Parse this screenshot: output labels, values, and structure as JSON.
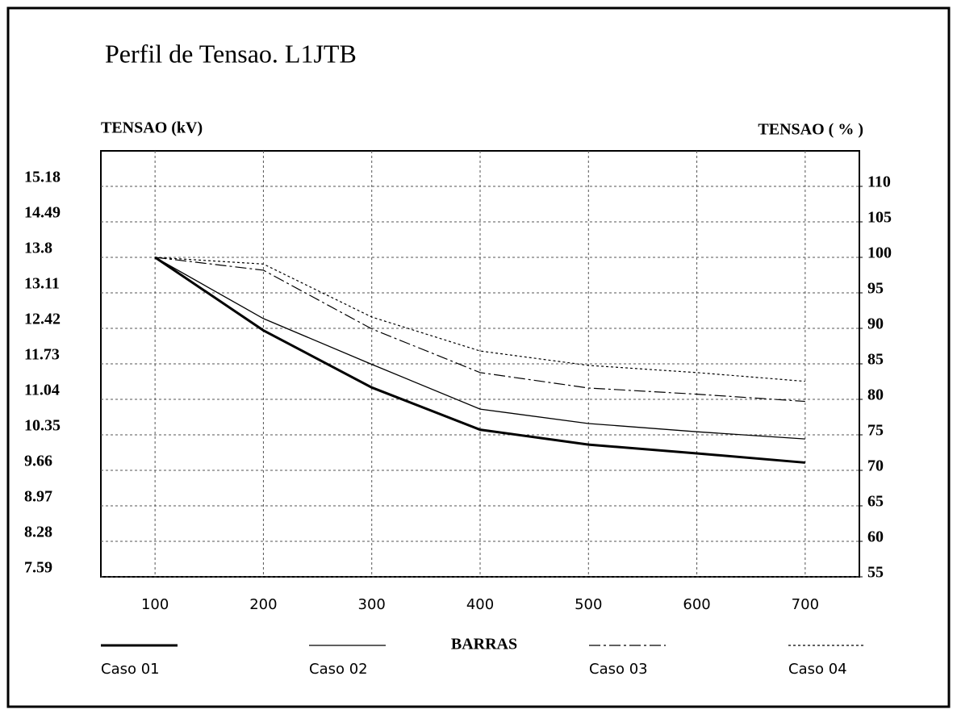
{
  "chart_data": {
    "type": "line",
    "title": "Perfil de Tensao. L1JTB",
    "ylabel": "TENSAO (kV)",
    "y2label": "TENSAO ( % )",
    "xlabel": "BARRAS",
    "x": [
      100,
      200,
      300,
      400,
      500,
      600,
      700
    ],
    "xlim": [
      50,
      750
    ],
    "xticks": [
      100,
      200,
      300,
      400,
      500,
      600,
      700
    ],
    "ylim": [
      7.59,
      15.87
    ],
    "yticks": [
      7.59,
      8.28,
      8.97,
      9.66,
      10.35,
      11.04,
      11.73,
      12.42,
      13.11,
      13.8,
      14.49,
      15.18
    ],
    "y2lim": [
      55,
      115
    ],
    "y2ticks": [
      55,
      60,
      65,
      70,
      75,
      80,
      85,
      90,
      95,
      100,
      105,
      110
    ],
    "grid": true,
    "legend": "bottom",
    "series": [
      {
        "name": "Caso 01",
        "color": "#000000",
        "linestyle": "solid",
        "linewidth": 3,
        "values": [
          13.8,
          12.38,
          11.27,
          10.45,
          10.16,
          9.99,
          9.81
        ]
      },
      {
        "name": "Caso 02",
        "color": "#000000",
        "linestyle": "solid",
        "linewidth": 1.3,
        "values": [
          13.8,
          12.61,
          11.72,
          10.85,
          10.57,
          10.41,
          10.27
        ]
      },
      {
        "name": "Caso 03",
        "color": "#000000",
        "linestyle": "dashdot",
        "linewidth": 1.2,
        "values": [
          13.8,
          13.55,
          12.41,
          11.56,
          11.26,
          11.14,
          11.0
        ]
      },
      {
        "name": "Caso 04",
        "color": "#000000",
        "linestyle": "dotted",
        "linewidth": 1.2,
        "values": [
          13.8,
          13.67,
          12.64,
          11.98,
          11.7,
          11.56,
          11.39
        ]
      }
    ]
  }
}
